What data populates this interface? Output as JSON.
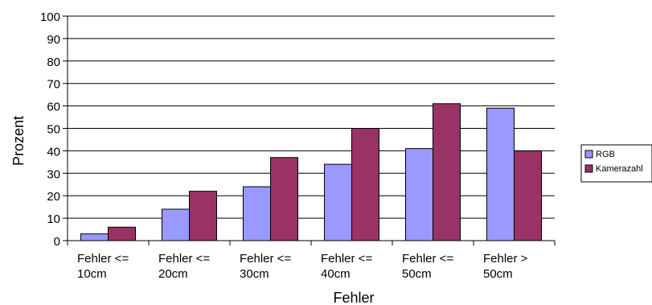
{
  "chart_data": {
    "type": "bar",
    "xlabel": "Fehler",
    "ylabel": "Prozent",
    "ylim": [
      0,
      100
    ],
    "yticks": [
      0,
      10,
      20,
      30,
      40,
      50,
      60,
      70,
      80,
      90,
      100
    ],
    "grid": true,
    "legend_position": "right",
    "categories": [
      [
        "Fehler <=",
        "10cm"
      ],
      [
        "Fehler <=",
        "20cm"
      ],
      [
        "Fehler <=",
        "30cm"
      ],
      [
        "Fehler <=",
        "40cm"
      ],
      [
        "Fehler <=",
        "50cm"
      ],
      [
        "Fehler >",
        "50cm"
      ]
    ],
    "series": [
      {
        "name": "RGB",
        "color": "#9999ff",
        "values": [
          3,
          14,
          24,
          34,
          41,
          59
        ]
      },
      {
        "name": "Kamerazahl",
        "color": "#993366",
        "values": [
          6,
          22,
          37,
          50,
          61,
          40
        ]
      }
    ]
  }
}
